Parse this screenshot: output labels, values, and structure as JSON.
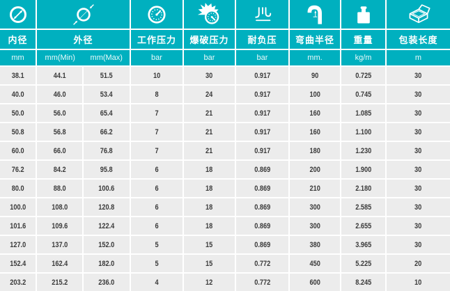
{
  "chart_data": {
    "type": "table",
    "columns": [
      {
        "label": "内径",
        "unit": "mm",
        "icon": "inner-diameter-icon"
      },
      {
        "label": "外径",
        "unit_min": "mm(Min)",
        "unit_max": "mm(Max)",
        "icon": "outer-diameter-icon"
      },
      {
        "label": "工作压力",
        "unit": "bar",
        "icon": "working-pressure-gauge-icon"
      },
      {
        "label": "爆破压力",
        "unit": "bar",
        "icon": "burst-pressure-icon"
      },
      {
        "label": "耐负压",
        "unit": "bar",
        "icon": "vacuum-resistance-icon"
      },
      {
        "label": "弯曲半径",
        "unit": "mm.",
        "icon": "bend-radius-icon"
      },
      {
        "label": "重量",
        "unit": "kg/m",
        "icon": "weight-icon"
      },
      {
        "label": "包装长度",
        "unit": "m",
        "icon": "package-box-icon"
      }
    ],
    "sub_headers": [
      "mm",
      "mm(Min)",
      "mm(Max)",
      "bar",
      "bar",
      "bar",
      "mm.",
      "kg/m",
      "m"
    ],
    "rows": [
      [
        "38.1",
        "44.1",
        "51.5",
        "10",
        "30",
        "0.917",
        "90",
        "0.725",
        "30"
      ],
      [
        "40.0",
        "46.0",
        "53.4",
        "8",
        "24",
        "0.917",
        "100",
        "0.745",
        "30"
      ],
      [
        "50.0",
        "56.0",
        "65.4",
        "7",
        "21",
        "0.917",
        "160",
        "1.085",
        "30"
      ],
      [
        "50.8",
        "56.8",
        "66.2",
        "7",
        "21",
        "0.917",
        "160",
        "1.100",
        "30"
      ],
      [
        "60.0",
        "66.0",
        "76.8",
        "7",
        "21",
        "0.917",
        "180",
        "1.230",
        "30"
      ],
      [
        "76.2",
        "84.2",
        "95.8",
        "6",
        "18",
        "0.869",
        "200",
        "1.900",
        "30"
      ],
      [
        "80.0",
        "88.0",
        "100.6",
        "6",
        "18",
        "0.869",
        "210",
        "2.180",
        "30"
      ],
      [
        "100.0",
        "108.0",
        "120.8",
        "6",
        "18",
        "0.869",
        "300",
        "2.585",
        "30"
      ],
      [
        "101.6",
        "109.6",
        "122.4",
        "6",
        "18",
        "0.869",
        "300",
        "2.655",
        "30"
      ],
      [
        "127.0",
        "137.0",
        "152.0",
        "5",
        "15",
        "0.869",
        "380",
        "3.965",
        "30"
      ],
      [
        "152.4",
        "162.4",
        "182.0",
        "5",
        "15",
        "0.772",
        "450",
        "5.225",
        "20"
      ],
      [
        "203.2",
        "215.2",
        "236.0",
        "4",
        "12",
        "0.772",
        "600",
        "8.245",
        "10"
      ]
    ],
    "colors": {
      "teal": "#00b0bf",
      "row_bg": "#ececec",
      "divider": "#ffffff",
      "data_text": "#3a3a3a",
      "header_text": "#ffffff"
    },
    "layout": {
      "grid": "on",
      "legend": "none"
    }
  }
}
